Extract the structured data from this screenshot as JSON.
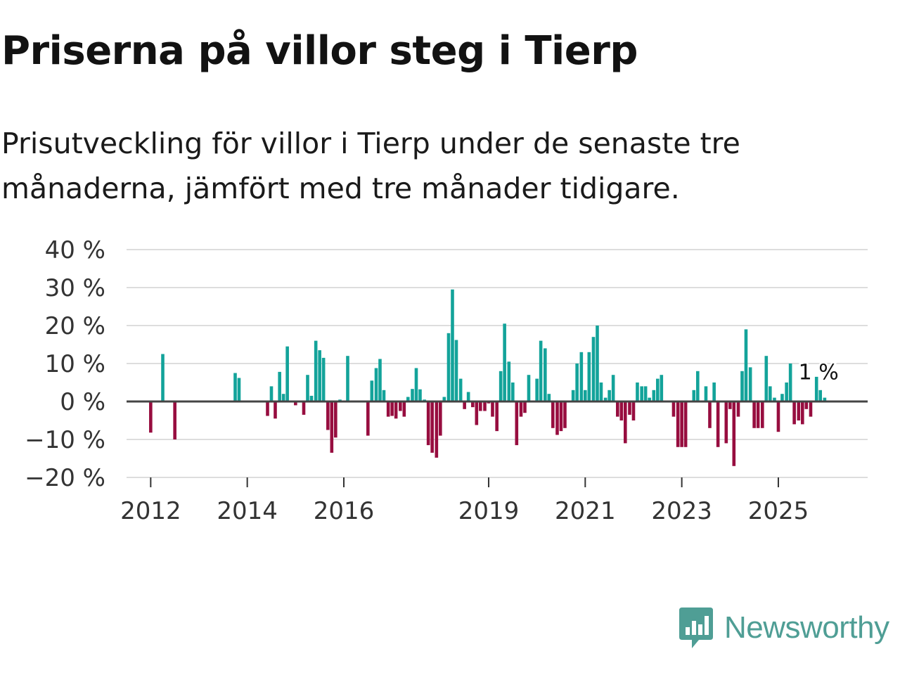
{
  "title": "Priserna på villor steg i Tierp",
  "subtitle": "Prisutveckling för villor i Tierp under de senaste tre månaderna, jämfört med tre månader tidigare.",
  "brand": {
    "name": "Newsworthy",
    "color": "#4f9e95",
    "icon": "chat-bar-chart-icon"
  },
  "colors": {
    "positive": "#13a39a",
    "negative": "#970d3f",
    "zero_line": "#444444",
    "grid": "#dddddd",
    "text": "#121212"
  },
  "chart_data": {
    "type": "bar",
    "title": "Priserna på villor steg i Tierp",
    "xlabel": "",
    "ylabel": "",
    "ylim": [
      -20,
      40
    ],
    "xlim": [
      2011.5,
      2026.85
    ],
    "grid": true,
    "y_ticks": [
      {
        "value": 40,
        "label": "40 %"
      },
      {
        "value": 30,
        "label": "30 %"
      },
      {
        "value": 20,
        "label": "20 %"
      },
      {
        "value": 10,
        "label": "10 %"
      },
      {
        "value": 0,
        "label": "0 %"
      },
      {
        "value": -10,
        "label": "−10 %"
      },
      {
        "value": -20,
        "label": "−20 %"
      }
    ],
    "x_ticks": [
      {
        "value": 2012,
        "label": "2012"
      },
      {
        "value": 2014,
        "label": "2014"
      },
      {
        "value": 2016,
        "label": "2016"
      },
      {
        "value": 2019,
        "label": "2019"
      },
      {
        "value": 2021,
        "label": "2021"
      },
      {
        "value": 2023,
        "label": "2023"
      },
      {
        "value": 2025,
        "label": "2025"
      }
    ],
    "annotation": {
      "label": "1 %",
      "x": 2025.79,
      "y": 1
    },
    "series": [
      {
        "name": "Prisutveckling",
        "points": [
          [
            2012.0,
            -8.2
          ],
          [
            2012.25,
            12.5
          ],
          [
            2012.5,
            -10
          ],
          [
            2013.75,
            7.5
          ],
          [
            2013.83,
            6.2
          ],
          [
            2014.42,
            -3.8
          ],
          [
            2014.5,
            4
          ],
          [
            2014.58,
            -4.5
          ],
          [
            2014.67,
            7.8
          ],
          [
            2014.75,
            2
          ],
          [
            2014.83,
            14.5
          ],
          [
            2015.0,
            -1
          ],
          [
            2015.17,
            -3.5
          ],
          [
            2015.25,
            7
          ],
          [
            2015.33,
            1.5
          ],
          [
            2015.42,
            16
          ],
          [
            2015.5,
            13.5
          ],
          [
            2015.58,
            11.5
          ],
          [
            2015.67,
            -7.5
          ],
          [
            2015.75,
            -13.5
          ],
          [
            2015.83,
            -9.5
          ],
          [
            2015.92,
            0.5
          ],
          [
            2016.08,
            12
          ],
          [
            2016.5,
            -9
          ],
          [
            2016.58,
            5.5
          ],
          [
            2016.67,
            8.8
          ],
          [
            2016.75,
            11.2
          ],
          [
            2016.83,
            3
          ],
          [
            2016.92,
            -4
          ],
          [
            2017.0,
            -3.8
          ],
          [
            2017.08,
            -4.5
          ],
          [
            2017.17,
            -2.5
          ],
          [
            2017.25,
            -4
          ],
          [
            2017.33,
            1.2
          ],
          [
            2017.42,
            3.3
          ],
          [
            2017.5,
            8.8
          ],
          [
            2017.58,
            3.2
          ],
          [
            2017.67,
            0.5
          ],
          [
            2017.75,
            -11.5
          ],
          [
            2017.83,
            -13.5
          ],
          [
            2017.92,
            -14.8
          ],
          [
            2018.0,
            -9
          ],
          [
            2018.08,
            1.2
          ],
          [
            2018.17,
            18
          ],
          [
            2018.25,
            29.5
          ],
          [
            2018.33,
            16.2
          ],
          [
            2018.42,
            6
          ],
          [
            2018.5,
            -2
          ],
          [
            2018.58,
            2.5
          ],
          [
            2018.67,
            -1.5
          ],
          [
            2018.75,
            -6.2
          ],
          [
            2018.83,
            -2.5
          ],
          [
            2018.92,
            -2.5
          ],
          [
            2019.0,
            -0.5
          ],
          [
            2019.08,
            -4
          ],
          [
            2019.17,
            -7.8
          ],
          [
            2019.25,
            8
          ],
          [
            2019.33,
            20.5
          ],
          [
            2019.42,
            10.5
          ],
          [
            2019.5,
            5
          ],
          [
            2019.58,
            -11.5
          ],
          [
            2019.67,
            -4
          ],
          [
            2019.75,
            -3
          ],
          [
            2019.83,
            7
          ],
          [
            2020.0,
            6
          ],
          [
            2020.08,
            16
          ],
          [
            2020.17,
            14
          ],
          [
            2020.25,
            2
          ],
          [
            2020.33,
            -7
          ],
          [
            2020.42,
            -8.8
          ],
          [
            2020.5,
            -7.8
          ],
          [
            2020.58,
            -7
          ],
          [
            2020.75,
            3
          ],
          [
            2020.83,
            10
          ],
          [
            2020.92,
            13
          ],
          [
            2021.0,
            3
          ],
          [
            2021.08,
            13
          ],
          [
            2021.17,
            17
          ],
          [
            2021.25,
            20
          ],
          [
            2021.33,
            5
          ],
          [
            2021.42,
            1
          ],
          [
            2021.5,
            3
          ],
          [
            2021.58,
            7
          ],
          [
            2021.67,
            -4
          ],
          [
            2021.75,
            -5
          ],
          [
            2021.83,
            -11
          ],
          [
            2021.92,
            -3.5
          ],
          [
            2022.0,
            -5
          ],
          [
            2022.08,
            5
          ],
          [
            2022.17,
            4
          ],
          [
            2022.25,
            4
          ],
          [
            2022.33,
            1
          ],
          [
            2022.42,
            3
          ],
          [
            2022.5,
            6
          ],
          [
            2022.58,
            7
          ],
          [
            2022.83,
            -4
          ],
          [
            2022.92,
            -12
          ],
          [
            2023.0,
            -12
          ],
          [
            2023.08,
            -12
          ],
          [
            2023.25,
            3
          ],
          [
            2023.33,
            8
          ],
          [
            2023.5,
            4
          ],
          [
            2023.58,
            -7
          ],
          [
            2023.67,
            5
          ],
          [
            2023.75,
            -12
          ],
          [
            2023.92,
            -11
          ],
          [
            2024.0,
            -2
          ],
          [
            2024.08,
            -17
          ],
          [
            2024.17,
            -4
          ],
          [
            2024.25,
            8
          ],
          [
            2024.33,
            19
          ],
          [
            2024.42,
            9
          ],
          [
            2024.5,
            -7
          ],
          [
            2024.58,
            -7
          ],
          [
            2024.67,
            -7
          ],
          [
            2024.75,
            12
          ],
          [
            2024.83,
            4
          ],
          [
            2024.92,
            1
          ],
          [
            2025.0,
            -8
          ],
          [
            2025.08,
            2
          ],
          [
            2025.17,
            5
          ],
          [
            2025.25,
            10
          ],
          [
            2025.33,
            -6
          ],
          [
            2025.42,
            -5
          ],
          [
            2025.5,
            -6
          ],
          [
            2025.58,
            -2
          ],
          [
            2025.67,
            -4
          ],
          [
            2025.79,
            6.5
          ],
          [
            2025.87,
            3
          ],
          [
            2025.96,
            1
          ]
        ]
      }
    ]
  }
}
